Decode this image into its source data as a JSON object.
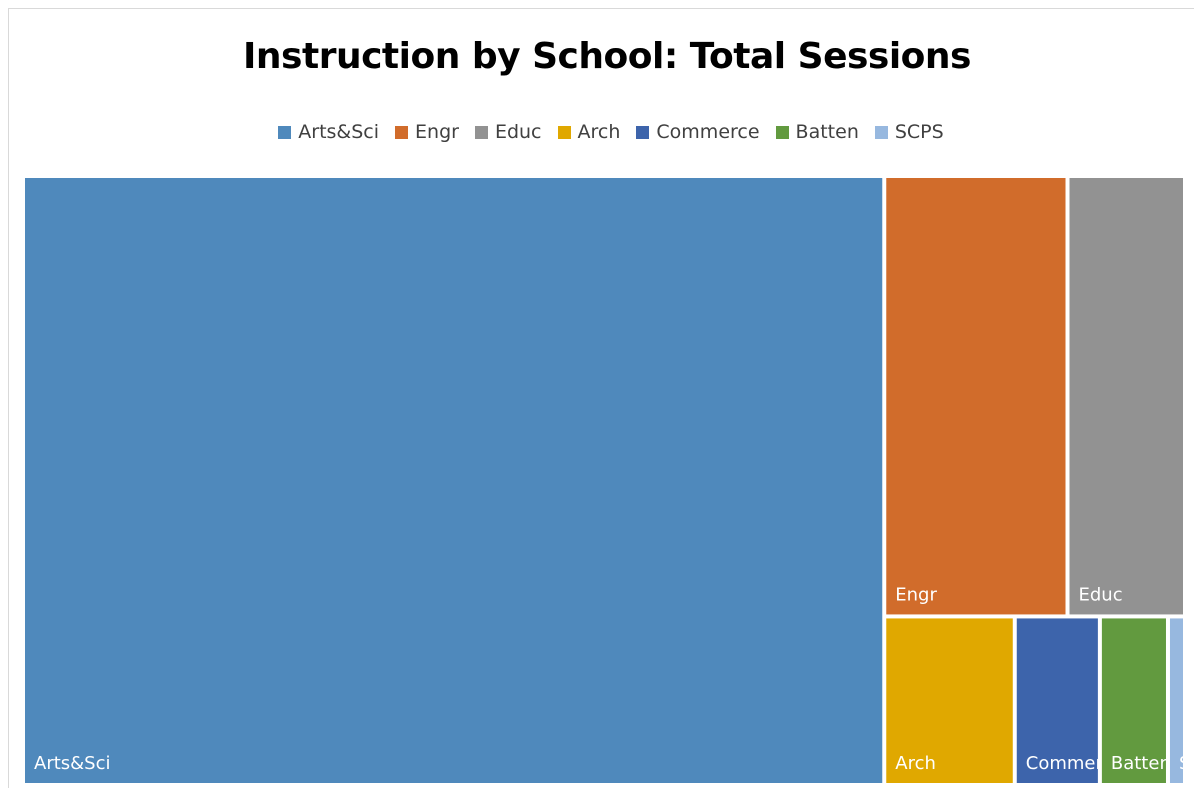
{
  "chart_data": {
    "type": "treemap",
    "title": "Instruction by School: Total Sessions",
    "legend_position": "top",
    "categories": [
      "Arts&Sci",
      "Engr",
      "Educ",
      "Arch",
      "Commerce",
      "Batten",
      "SCPS"
    ],
    "values": [
      1100,
      170,
      109,
      46,
      30,
      24,
      6
    ],
    "tile_labels": [
      "Arts&Sci",
      "Engr",
      "Educ",
      "Arch",
      "Commerce",
      "Batten",
      "S..."
    ],
    "colors": [
      "#4f89bc",
      "#d16c2b",
      "#929292",
      "#e0a800",
      "#3d64ab",
      "#629a3f",
      "#97b8df"
    ]
  }
}
